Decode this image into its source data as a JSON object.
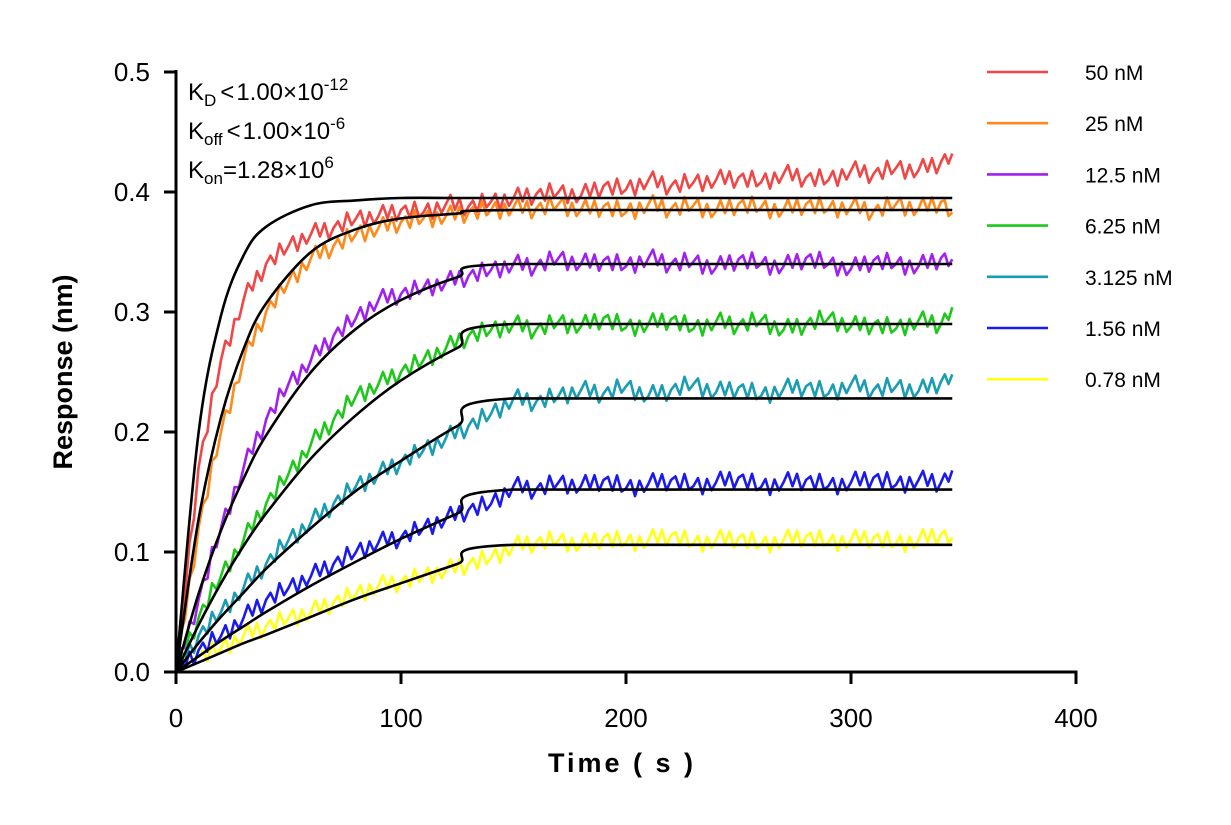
{
  "chart_data": {
    "type": "line",
    "title": "",
    "xlabel": "Time ( s )",
    "ylabel": "Response (nm)",
    "xlim": [
      0,
      400
    ],
    "ylim": [
      0,
      0.5
    ],
    "xticks": [
      "0",
      "100",
      "200",
      "300",
      "400"
    ],
    "yticks": [
      "0.0",
      "0.1",
      "0.2",
      "0.3",
      "0.4",
      "0.5"
    ],
    "grid": false,
    "legend_position": "right",
    "annotations": {
      "kd": {
        "label": "K",
        "sub": "D",
        "rel": "<",
        "value": "1.00×10",
        "exp": "-12"
      },
      "koff": {
        "label": "K",
        "sub": "off",
        "rel": "<",
        "value": "1.00×10",
        "exp": "-6"
      },
      "kon": {
        "label": "K",
        "sub": "on",
        "rel": "=",
        "value": "1.28×10",
        "exp": "6"
      }
    },
    "fit_color": "#000000",
    "x": [
      0,
      10,
      20,
      30,
      40,
      50,
      60,
      70,
      80,
      90,
      100,
      110,
      120,
      130,
      140,
      150,
      160,
      170,
      180,
      190,
      200,
      210,
      220,
      230,
      240,
      250,
      260,
      270,
      280,
      290,
      300,
      310,
      320,
      330,
      340,
      345
    ],
    "fit_x": [
      0,
      10,
      20,
      30,
      40,
      60,
      80,
      100,
      125,
      150,
      345
    ],
    "series": [
      {
        "name": "50 nM",
        "color": "#f04646",
        "values": [
          0,
          0.17,
          0.26,
          0.31,
          0.34,
          0.355,
          0.365,
          0.37,
          0.378,
          0.38,
          0.385,
          0.383,
          0.39,
          0.388,
          0.392,
          0.395,
          0.398,
          0.4,
          0.397,
          0.405,
          0.402,
          0.41,
          0.405,
          0.408,
          0.41,
          0.412,
          0.408,
          0.415,
          0.412,
          0.41,
          0.418,
          0.415,
          0.42,
          0.418,
          0.425,
          0.432
        ],
        "fit": [
          0,
          0.199,
          0.297,
          0.347,
          0.371,
          0.389,
          0.393,
          0.395,
          0.395,
          0.395,
          0.395
        ]
      },
      {
        "name": "25 nM",
        "color": "#ff8a1c",
        "values": [
          0,
          0.12,
          0.2,
          0.26,
          0.3,
          0.325,
          0.345,
          0.355,
          0.365,
          0.37,
          0.375,
          0.378,
          0.38,
          0.383,
          0.385,
          0.387,
          0.386,
          0.39,
          0.385,
          0.388,
          0.383,
          0.39,
          0.386,
          0.389,
          0.384,
          0.39,
          0.387,
          0.385,
          0.39,
          0.386,
          0.388,
          0.384,
          0.39,
          0.386,
          0.392,
          0.383
        ],
        "fit": [
          0,
          0.127,
          0.212,
          0.269,
          0.307,
          0.35,
          0.369,
          0.378,
          0.382,
          0.385,
          0.385
        ]
      },
      {
        "name": "12.5 nM",
        "color": "#a020f0",
        "values": [
          0,
          0.06,
          0.12,
          0.17,
          0.21,
          0.24,
          0.26,
          0.28,
          0.295,
          0.31,
          0.315,
          0.32,
          0.325,
          0.33,
          0.335,
          0.34,
          0.338,
          0.345,
          0.34,
          0.343,
          0.338,
          0.345,
          0.34,
          0.342,
          0.337,
          0.344,
          0.34,
          0.338,
          0.345,
          0.34,
          0.336,
          0.343,
          0.34,
          0.338,
          0.345,
          0.344
        ],
        "fit": [
          0,
          0.065,
          0.118,
          0.161,
          0.197,
          0.25,
          0.286,
          0.31,
          0.329,
          0.34,
          0.34
        ]
      },
      {
        "name": "6.25 nM",
        "color": "#1ec81a",
        "values": [
          0,
          0.045,
          0.08,
          0.11,
          0.14,
          0.165,
          0.19,
          0.21,
          0.23,
          0.24,
          0.25,
          0.26,
          0.27,
          0.28,
          0.285,
          0.29,
          0.285,
          0.292,
          0.288,
          0.295,
          0.287,
          0.29,
          0.294,
          0.286,
          0.292,
          0.289,
          0.293,
          0.285,
          0.29,
          0.295,
          0.288,
          0.29,
          0.286,
          0.293,
          0.29,
          0.304
        ],
        "fit": [
          0,
          0.039,
          0.074,
          0.105,
          0.132,
          0.178,
          0.214,
          0.243,
          0.27,
          0.29,
          0.29
        ]
      },
      {
        "name": "3.125 nM",
        "color": "#1a9cb2",
        "values": [
          0,
          0.03,
          0.05,
          0.07,
          0.09,
          0.11,
          0.125,
          0.14,
          0.155,
          0.165,
          0.175,
          0.185,
          0.195,
          0.205,
          0.215,
          0.228,
          0.225,
          0.23,
          0.235,
          0.232,
          0.238,
          0.23,
          0.235,
          0.24,
          0.233,
          0.237,
          0.23,
          0.236,
          0.238,
          0.232,
          0.24,
          0.235,
          0.238,
          0.234,
          0.242,
          0.248
        ],
        "fit": [
          0,
          0.024,
          0.046,
          0.066,
          0.086,
          0.12,
          0.151,
          0.176,
          0.205,
          0.228,
          0.228
        ]
      },
      {
        "name": "1.56 nM",
        "color": "#1a1aee",
        "values": [
          0,
          0.018,
          0.03,
          0.045,
          0.06,
          0.07,
          0.08,
          0.09,
          0.1,
          0.108,
          0.112,
          0.12,
          0.128,
          0.135,
          0.14,
          0.155,
          0.152,
          0.158,
          0.155,
          0.16,
          0.153,
          0.157,
          0.16,
          0.155,
          0.158,
          0.162,
          0.154,
          0.158,
          0.16,
          0.155,
          0.158,
          0.162,
          0.156,
          0.16,
          0.158,
          0.168
        ],
        "fit": [
          0,
          0.013,
          0.026,
          0.038,
          0.05,
          0.072,
          0.092,
          0.111,
          0.132,
          0.152,
          0.152
        ]
      },
      {
        "name": "0.78 nM",
        "color": "#ffff1a",
        "values": [
          null,
          0.012,
          0.02,
          0.03,
          0.038,
          0.045,
          0.05,
          0.058,
          0.065,
          0.072,
          0.075,
          0.08,
          0.085,
          0.09,
          0.095,
          0.105,
          0.108,
          0.11,
          0.106,
          0.112,
          0.108,
          0.11,
          0.114,
          0.107,
          0.11,
          0.112,
          0.106,
          0.11,
          0.113,
          0.108,
          0.11,
          0.112,
          0.107,
          0.11,
          0.115,
          0.112
        ],
        "fit": [
          0,
          0.008,
          0.016,
          0.024,
          0.031,
          0.046,
          0.061,
          0.074,
          0.09,
          0.106,
          0.106
        ]
      }
    ]
  }
}
